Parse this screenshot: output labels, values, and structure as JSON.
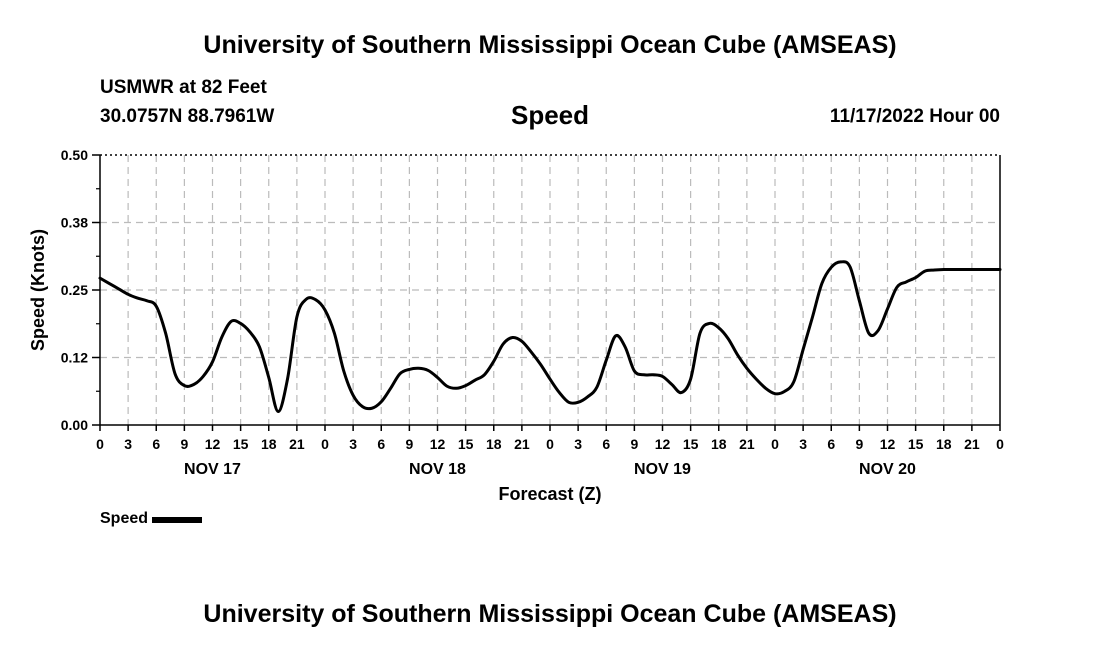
{
  "header": {
    "title": "University of Southern Mississippi Ocean Cube (AMSEAS)",
    "station": "USMWR at 82 Feet",
    "coordinates": "30.0757N  88.7961W",
    "variable": "Speed",
    "datetime": "11/17/2022 Hour 00"
  },
  "footer": {
    "title": "University of Southern Mississippi Ocean Cube (AMSEAS)"
  },
  "legend": {
    "label": "Speed"
  },
  "chart_data": {
    "type": "line",
    "title": "Speed",
    "xlabel": "Forecast (Z)",
    "ylabel": "Speed (Knots)",
    "xlim": [
      0,
      96
    ],
    "ylim": [
      0,
      0.5
    ],
    "y_ticks": [
      0.0,
      0.125,
      0.25,
      0.375,
      0.5
    ],
    "y_tick_labels": [
      "0.00",
      "0.12",
      "0.25",
      "0.38",
      "0.50"
    ],
    "x_tick_hours": [
      0,
      3,
      6,
      9,
      12,
      15,
      18,
      21,
      24,
      27,
      30,
      33,
      36,
      39,
      42,
      45,
      48,
      51,
      54,
      57,
      60,
      63,
      66,
      69,
      72,
      75,
      78,
      81,
      84,
      87,
      90,
      93,
      96
    ],
    "x_tick_labels": [
      "0",
      "3",
      "6",
      "9",
      "12",
      "15",
      "18",
      "21",
      "0",
      "3",
      "6",
      "9",
      "12",
      "15",
      "18",
      "21",
      "0",
      "3",
      "6",
      "9",
      "12",
      "15",
      "18",
      "21",
      "0",
      "3",
      "6",
      "9",
      "12",
      "15",
      "18",
      "21",
      "0"
    ],
    "day_labels": [
      {
        "hour": 12,
        "label": "NOV 17"
      },
      {
        "hour": 36,
        "label": "NOV 18"
      },
      {
        "hour": 60,
        "label": "NOV 19"
      },
      {
        "hour": 84,
        "label": "NOV 20"
      }
    ],
    "grid": true,
    "series": [
      {
        "name": "Speed",
        "color": "#000000",
        "x": [
          0,
          1,
          2,
          3,
          4,
          5,
          6,
          7,
          8,
          9,
          10,
          11,
          12,
          13,
          14,
          15,
          16,
          17,
          18,
          19,
          20,
          21,
          22,
          23,
          24,
          25,
          26,
          27,
          28,
          29,
          30,
          31,
          32,
          33,
          34,
          35,
          36,
          37,
          38,
          39,
          40,
          41,
          42,
          43,
          44,
          45,
          46,
          47,
          48,
          49,
          50,
          51,
          52,
          53,
          54,
          55,
          56,
          57,
          58,
          59,
          60,
          61,
          62,
          63,
          64,
          65,
          66,
          67,
          68,
          69,
          70,
          71,
          72,
          73,
          74,
          75,
          76,
          77,
          78,
          79,
          80,
          81,
          82,
          83,
          84,
          85,
          86,
          87,
          88,
          89,
          90,
          91,
          92,
          93,
          94,
          95,
          96
        ],
        "values": [
          0.272,
          0.262,
          0.252,
          0.242,
          0.235,
          0.23,
          0.22,
          0.17,
          0.095,
          0.073,
          0.075,
          0.09,
          0.117,
          0.163,
          0.192,
          0.188,
          0.172,
          0.145,
          0.088,
          0.025,
          0.085,
          0.2,
          0.233,
          0.232,
          0.213,
          0.17,
          0.1,
          0.055,
          0.034,
          0.031,
          0.043,
          0.068,
          0.095,
          0.103,
          0.105,
          0.101,
          0.088,
          0.072,
          0.068,
          0.073,
          0.083,
          0.093,
          0.118,
          0.15,
          0.162,
          0.155,
          0.135,
          0.112,
          0.085,
          0.06,
          0.042,
          0.042,
          0.052,
          0.07,
          0.12,
          0.165,
          0.145,
          0.1,
          0.093,
          0.093,
          0.09,
          0.075,
          0.06,
          0.085,
          0.17,
          0.188,
          0.18,
          0.16,
          0.13,
          0.105,
          0.085,
          0.068,
          0.058,
          0.062,
          0.08,
          0.14,
          0.2,
          0.262,
          0.292,
          0.302,
          0.293,
          0.23,
          0.17,
          0.175,
          0.215,
          0.255,
          0.265,
          0.273,
          0.285,
          0.287,
          0.288,
          0.288,
          0.288,
          0.288,
          0.288,
          0.288,
          0.288
        ]
      }
    ]
  }
}
